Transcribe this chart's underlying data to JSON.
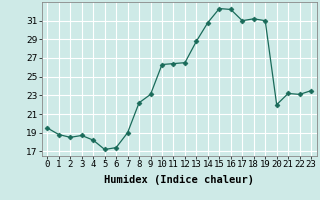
{
  "x": [
    0,
    1,
    2,
    3,
    4,
    5,
    6,
    7,
    8,
    9,
    10,
    11,
    12,
    13,
    14,
    15,
    16,
    17,
    18,
    19,
    20,
    21,
    22,
    23
  ],
  "y": [
    19.5,
    18.8,
    18.5,
    18.7,
    18.2,
    17.2,
    17.4,
    19.0,
    22.2,
    23.1,
    26.3,
    26.4,
    26.5,
    28.8,
    30.8,
    32.3,
    32.2,
    31.0,
    31.2,
    31.0,
    22.0,
    23.2,
    23.1,
    23.5
  ],
  "xlabel": "Humidex (Indice chaleur)",
  "xlim": [
    -0.5,
    23.5
  ],
  "ylim": [
    16.5,
    33.0
  ],
  "yticks": [
    17,
    19,
    21,
    23,
    25,
    27,
    29,
    31
  ],
  "xtick_labels": [
    "0",
    "1",
    "2",
    "3",
    "4",
    "5",
    "6",
    "7",
    "8",
    "9",
    "10",
    "11",
    "12",
    "13",
    "14",
    "15",
    "16",
    "17",
    "18",
    "19",
    "20",
    "21",
    "22",
    "23"
  ],
  "line_color": "#1a6b5a",
  "marker": "D",
  "marker_size": 2.5,
  "bg_color": "#ceeae7",
  "grid_color": "#ffffff",
  "label_fontsize": 7.5,
  "tick_fontsize": 6.5,
  "spine_color": "#888888"
}
